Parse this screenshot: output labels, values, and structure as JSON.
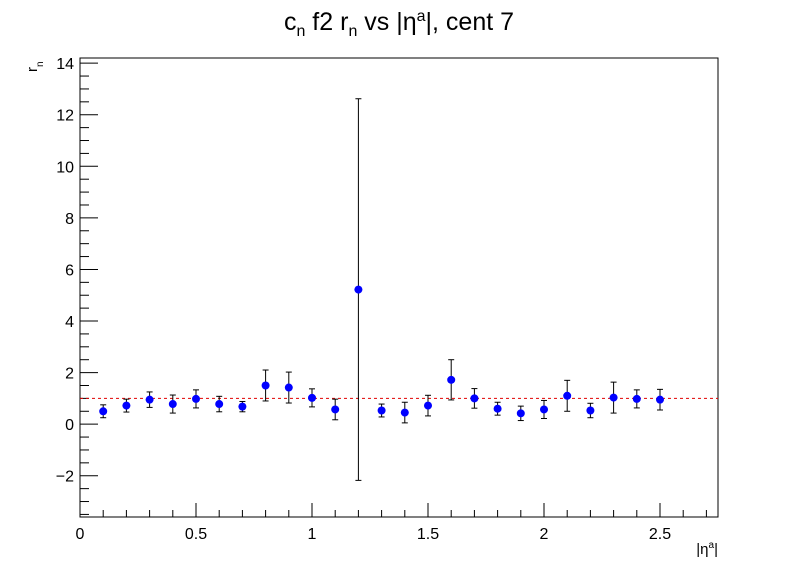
{
  "chart_data": {
    "type": "scatter",
    "title": "c_n f2 r_n vs |η^a|, cent 7",
    "title_parts": {
      "c": "c",
      "n1": "n",
      "f2": " f2 ",
      "r": "r",
      "n2": "n",
      "vs": " vs |η",
      "a": "a",
      "end": "|, cent 7"
    },
    "xlabel": "|η^a|",
    "xlabel_parts": {
      "pre": "|η",
      "sup": "a",
      "post": "|"
    },
    "ylabel": "r_n",
    "ylabel_parts": {
      "r": "r",
      "n": "n"
    },
    "xlim": [
      0,
      2.75
    ],
    "ylim": [
      -3.6,
      14.2
    ],
    "x_ticks": [
      0,
      0.5,
      1,
      1.5,
      2,
      2.5
    ],
    "x_tick_labels": [
      "0",
      "0.5",
      "1",
      "1.5",
      "2",
      "2.5"
    ],
    "y_ticks": [
      -2,
      0,
      2,
      4,
      6,
      8,
      10,
      12,
      14
    ],
    "y_tick_labels": [
      "−2",
      "0",
      "2",
      "4",
      "6",
      "8",
      "10",
      "12",
      "14"
    ],
    "reference_line": {
      "y": 1,
      "style": "dashed",
      "color": "#e00000"
    },
    "marker_color": "#0000ff",
    "error_bar_color": "#000000",
    "points": [
      {
        "x": 0.1,
        "y": 0.5,
        "err": 0.25
      },
      {
        "x": 0.2,
        "y": 0.72,
        "err": 0.25
      },
      {
        "x": 0.3,
        "y": 0.95,
        "err": 0.3
      },
      {
        "x": 0.4,
        "y": 0.78,
        "err": 0.35
      },
      {
        "x": 0.5,
        "y": 0.98,
        "err": 0.35
      },
      {
        "x": 0.6,
        "y": 0.78,
        "err": 0.3
      },
      {
        "x": 0.7,
        "y": 0.68,
        "err": 0.2
      },
      {
        "x": 0.8,
        "y": 1.5,
        "err": 0.6
      },
      {
        "x": 0.9,
        "y": 1.42,
        "err": 0.6
      },
      {
        "x": 1.0,
        "y": 1.02,
        "err": 0.35
      },
      {
        "x": 1.1,
        "y": 0.57,
        "err": 0.4
      },
      {
        "x": 1.2,
        "y": 5.22,
        "err": 7.4
      },
      {
        "x": 1.3,
        "y": 0.53,
        "err": 0.25
      },
      {
        "x": 1.4,
        "y": 0.45,
        "err": 0.4
      },
      {
        "x": 1.5,
        "y": 0.72,
        "err": 0.4
      },
      {
        "x": 1.6,
        "y": 1.72,
        "err": 0.78
      },
      {
        "x": 1.7,
        "y": 1.0,
        "err": 0.38
      },
      {
        "x": 1.8,
        "y": 0.6,
        "err": 0.25
      },
      {
        "x": 1.9,
        "y": 0.42,
        "err": 0.28
      },
      {
        "x": 2.0,
        "y": 0.57,
        "err": 0.35
      },
      {
        "x": 2.1,
        "y": 1.1,
        "err": 0.6
      },
      {
        "x": 2.2,
        "y": 0.53,
        "err": 0.28
      },
      {
        "x": 2.3,
        "y": 1.03,
        "err": 0.6
      },
      {
        "x": 2.4,
        "y": 0.98,
        "err": 0.35
      },
      {
        "x": 2.5,
        "y": 0.95,
        "err": 0.4
      }
    ]
  }
}
